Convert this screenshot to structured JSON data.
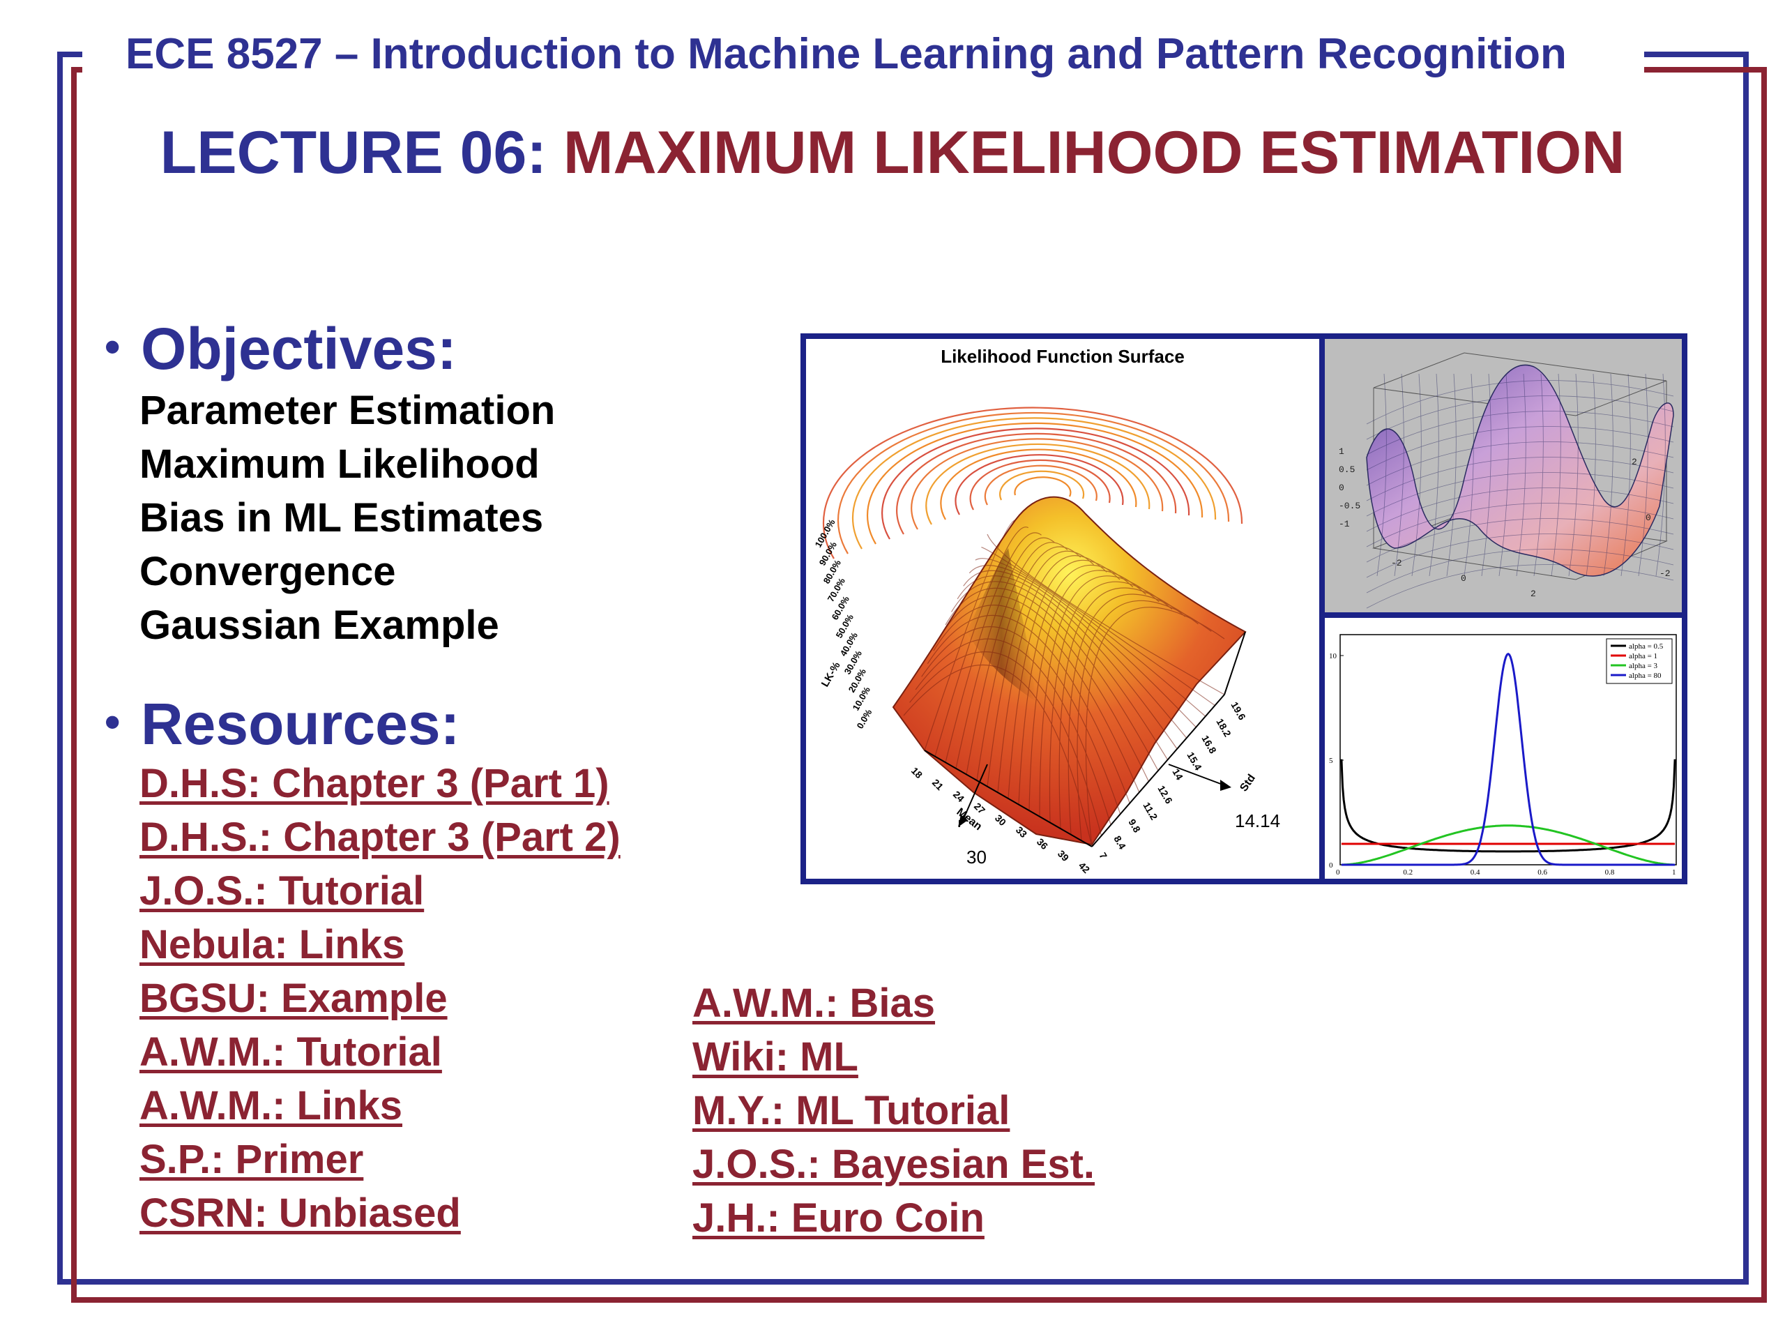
{
  "header": {
    "course": "ECE 8527 – Introduction to Machine Learning and Pattern Recognition",
    "lecture_prefix": "LECTURE 06:",
    "lecture_title": "MAXIMUM LIKELIHOOD ESTIMATION"
  },
  "objectives": {
    "bullet": "•",
    "heading": "Objectives:",
    "items": [
      "Parameter Estimation",
      "Maximum Likelihood",
      "Bias in ML Estimates",
      "Convergence",
      "Gaussian Example"
    ]
  },
  "resources": {
    "bullet": "•",
    "heading": "Resources:",
    "left": [
      "D.H.S: Chapter 3 (Part 1)",
      "D.H.S.: Chapter 3 (Part 2)",
      "J.O.S.: Tutorial",
      "Nebula: Links",
      "BGSU: Example",
      "A.W.M.: Tutorial",
      "A.W.M.: Links",
      "S.P.: Primer",
      "CSRN: Unbiased"
    ],
    "right": [
      "A.W.M.: Bias",
      "Wiki: ML",
      "M.Y.: ML Tutorial",
      "J.O.S.: Bayesian Est.",
      "J.H.: Euro Coin"
    ]
  },
  "figure": {
    "surface_title": "Likelihood Function Surface",
    "lk_label": "LK-%",
    "z_ticks": [
      "100.0%",
      "90.0%",
      "80.0%",
      "70.0%",
      "60.0%",
      "50.0%",
      "40.0%",
      "30.0%",
      "20.0%",
      "10.0%",
      "0.0%"
    ],
    "mean_label": "Mean",
    "mean_ticks": [
      "18",
      "21",
      "24",
      "27",
      "30",
      "33",
      "36",
      "39",
      "42"
    ],
    "mean_marker": "30",
    "sd_label": "Std",
    "sd_ticks": [
      "7",
      "8.4",
      "9.8",
      "11.2",
      "12.6",
      "14",
      "15.4",
      "16.8",
      "18.2",
      "19.6"
    ],
    "sd_marker": "14.14",
    "surf2_z_ticks": [
      "1",
      "0.5",
      "0",
      "-0.5",
      "-1"
    ],
    "surf2_x_ticks": [
      "-2",
      "0",
      "2"
    ],
    "surf2_y_ticks": [
      "-2",
      "0",
      "2"
    ],
    "beta_chart": {
      "y_ticks": [
        "10",
        "5",
        "0"
      ],
      "x_ticks": [
        "0",
        "0.2",
        "0.4",
        "0.6",
        "0.8",
        "1"
      ],
      "legend": [
        {
          "name": "alpha = 0.5",
          "color": "#000000"
        },
        {
          "name": "alpha = 1",
          "color": "#e00000"
        },
        {
          "name": "alpha = 3",
          "color": "#22c422"
        },
        {
          "name": "alpha = 80",
          "color": "#1a1ac8"
        }
      ]
    }
  },
  "colors": {
    "blue": "#2e3192",
    "maroon": "#8b2332"
  }
}
